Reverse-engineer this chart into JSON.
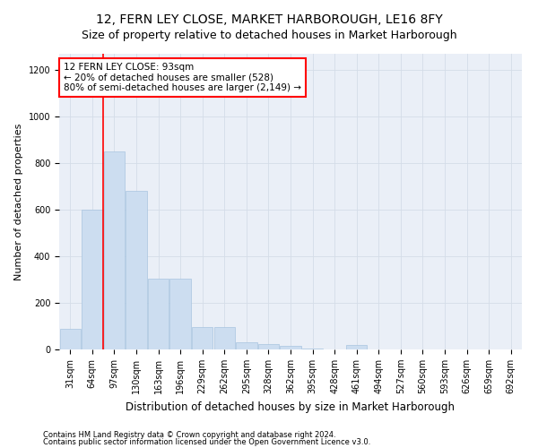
{
  "title1": "12, FERN LEY CLOSE, MARKET HARBOROUGH, LE16 8FY",
  "title2": "Size of property relative to detached houses in Market Harborough",
  "xlabel": "Distribution of detached houses by size in Market Harborough",
  "ylabel": "Number of detached properties",
  "categories": [
    "31sqm",
    "64sqm",
    "97sqm",
    "130sqm",
    "163sqm",
    "196sqm",
    "229sqm",
    "262sqm",
    "295sqm",
    "328sqm",
    "362sqm",
    "395sqm",
    "428sqm",
    "461sqm",
    "494sqm",
    "527sqm",
    "560sqm",
    "593sqm",
    "626sqm",
    "659sqm",
    "692sqm"
  ],
  "values": [
    90,
    600,
    850,
    680,
    305,
    305,
    95,
    95,
    30,
    22,
    15,
    5,
    0,
    20,
    0,
    0,
    0,
    0,
    0,
    0,
    0
  ],
  "bar_color": "#ccddf0",
  "bar_edge_color": "#a8c4e0",
  "vline_color": "red",
  "vline_x_index": 2,
  "annotation_text": "12 FERN LEY CLOSE: 93sqm\n← 20% of detached houses are smaller (528)\n80% of semi-detached houses are larger (2,149) →",
  "annotation_box_color": "white",
  "annotation_box_edgecolor": "red",
  "ylim": [
    0,
    1270
  ],
  "yticks": [
    0,
    200,
    400,
    600,
    800,
    1000,
    1200
  ],
  "footer1": "Contains HM Land Registry data © Crown copyright and database right 2024.",
  "footer2": "Contains public sector information licensed under the Open Government Licence v3.0.",
  "title1_fontsize": 10,
  "title2_fontsize": 9,
  "xlabel_fontsize": 8.5,
  "ylabel_fontsize": 8,
  "tick_fontsize": 7,
  "annotation_fontsize": 7.5,
  "footer_fontsize": 6
}
